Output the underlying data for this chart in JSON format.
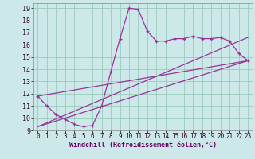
{
  "xlabel": "Windchill (Refroidissement éolien,°C)",
  "xlim": [
    -0.5,
    23.5
  ],
  "ylim": [
    9,
    19.4
  ],
  "xticks": [
    0,
    1,
    2,
    3,
    4,
    5,
    6,
    7,
    8,
    9,
    10,
    11,
    12,
    13,
    14,
    15,
    16,
    17,
    18,
    19,
    20,
    21,
    22,
    23
  ],
  "yticks": [
    9,
    10,
    11,
    12,
    13,
    14,
    15,
    16,
    17,
    18,
    19
  ],
  "bg_color": "#cce8e8",
  "line_color": "#993399",
  "grid_color": "#99ccbb",
  "line1_x": [
    0,
    1,
    2,
    3,
    4,
    5,
    6,
    7,
    8,
    9,
    10,
    11,
    12,
    13,
    14,
    15,
    16,
    17,
    18,
    19,
    20,
    21,
    22,
    23
  ],
  "line1_y": [
    11.8,
    11.0,
    10.3,
    9.9,
    9.5,
    9.3,
    9.4,
    11.0,
    13.8,
    16.5,
    19.0,
    18.9,
    17.1,
    16.3,
    16.3,
    16.5,
    16.5,
    16.7,
    16.5,
    16.5,
    16.6,
    16.3,
    15.3,
    14.7
  ],
  "line2_x": [
    0,
    23
  ],
  "line2_y": [
    11.8,
    14.7
  ],
  "line3_x": [
    0,
    23
  ],
  "line3_y": [
    9.3,
    14.7
  ],
  "line4_x": [
    0,
    23
  ],
  "line4_y": [
    9.3,
    16.6
  ],
  "xlabel_color": "#660066",
  "tick_fontsize": 5.5,
  "xlabel_fontsize": 6.0
}
